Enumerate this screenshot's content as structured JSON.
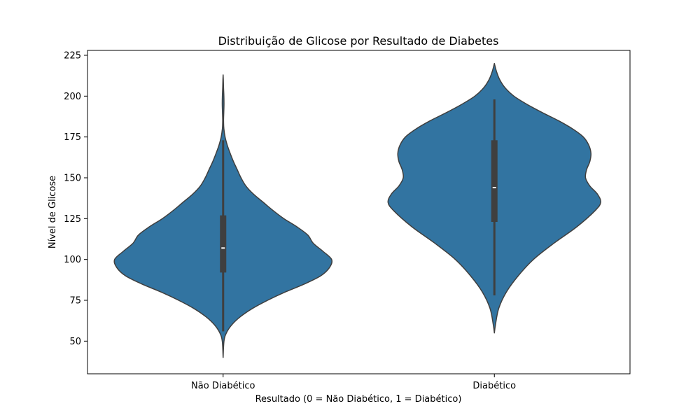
{
  "chart_data": {
    "type": "violin",
    "title": "Distribuição de Glicose por Resultado de Diabetes",
    "xlabel": "Resultado (0 = Não Diabético, 1 = Diabético)",
    "ylabel": "Nível de Glicose",
    "ylim": [
      30,
      228
    ],
    "yticks": [
      50,
      75,
      100,
      125,
      150,
      175,
      200,
      225
    ],
    "grid": false,
    "colors": {
      "violin": "#3274a1",
      "edge": "#3f3f3f",
      "box": "#3f3f3f",
      "median": "#ffffff"
    },
    "categories": [
      "Não Diabético",
      "Diabético"
    ],
    "series": [
      {
        "category": "Não Diabético",
        "median": 107,
        "q1": 92,
        "q3": 127,
        "whisker_low": 56,
        "whisker_high": 173,
        "density": [
          [
            40,
            0.0
          ],
          [
            50,
            0.008
          ],
          [
            55,
            0.03
          ],
          [
            60,
            0.08
          ],
          [
            65,
            0.16
          ],
          [
            70,
            0.27
          ],
          [
            75,
            0.41
          ],
          [
            80,
            0.57
          ],
          [
            85,
            0.75
          ],
          [
            90,
            0.9
          ],
          [
            95,
            0.98
          ],
          [
            100,
            1.0
          ],
          [
            105,
            0.92
          ],
          [
            110,
            0.83
          ],
          [
            115,
            0.78
          ],
          [
            120,
            0.68
          ],
          [
            125,
            0.56
          ],
          [
            130,
            0.46
          ],
          [
            135,
            0.37
          ],
          [
            140,
            0.28
          ],
          [
            145,
            0.21
          ],
          [
            150,
            0.165
          ],
          [
            155,
            0.13
          ],
          [
            160,
            0.095
          ],
          [
            165,
            0.065
          ],
          [
            170,
            0.038
          ],
          [
            175,
            0.018
          ],
          [
            180,
            0.007
          ],
          [
            185,
            0.004
          ],
          [
            190,
            0.006
          ],
          [
            195,
            0.008
          ],
          [
            200,
            0.007
          ],
          [
            205,
            0.004
          ],
          [
            210,
            0.002
          ],
          [
            213,
            0.0
          ]
        ]
      },
      {
        "category": "Diabético",
        "median": 144,
        "q1": 123,
        "q3": 173,
        "whisker_low": 78,
        "whisker_high": 198,
        "density": [
          [
            55,
            0.0
          ],
          [
            60,
            0.01
          ],
          [
            70,
            0.04
          ],
          [
            80,
            0.11
          ],
          [
            90,
            0.22
          ],
          [
            100,
            0.36
          ],
          [
            110,
            0.55
          ],
          [
            120,
            0.76
          ],
          [
            130,
            0.93
          ],
          [
            135,
            0.98
          ],
          [
            140,
            0.95
          ],
          [
            145,
            0.88
          ],
          [
            150,
            0.84
          ],
          [
            155,
            0.85
          ],
          [
            160,
            0.88
          ],
          [
            165,
            0.89
          ],
          [
            170,
            0.87
          ],
          [
            175,
            0.82
          ],
          [
            180,
            0.72
          ],
          [
            185,
            0.59
          ],
          [
            190,
            0.44
          ],
          [
            195,
            0.3
          ],
          [
            200,
            0.18
          ],
          [
            205,
            0.1
          ],
          [
            210,
            0.05
          ],
          [
            215,
            0.02
          ],
          [
            220,
            0.0
          ]
        ]
      }
    ]
  }
}
